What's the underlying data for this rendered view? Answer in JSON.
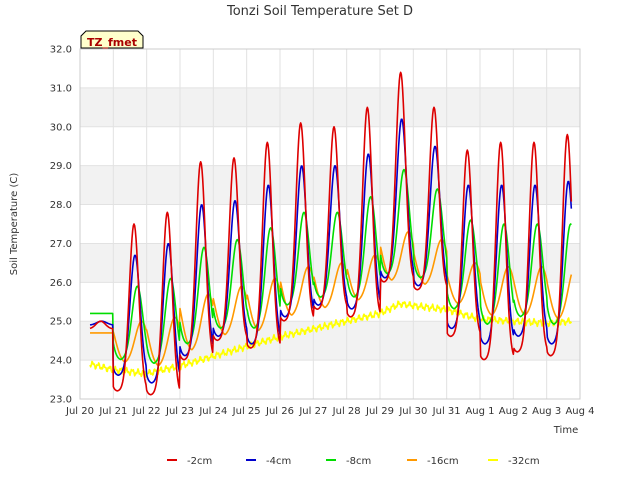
{
  "chart_data": {
    "type": "line",
    "title": "Tonzi Soil Temperature Set D",
    "xlabel": "Time",
    "ylabel": "Soil Temperature (C)",
    "annotation": "TZ_fmet",
    "ylim": [
      23.0,
      32.0
    ],
    "xlim": [
      0,
      15
    ],
    "y_ticks": [
      23.0,
      24.0,
      25.0,
      26.0,
      27.0,
      28.0,
      29.0,
      30.0,
      31.0,
      32.0
    ],
    "y_tick_labels": [
      "23.0",
      "24.0",
      "25.0",
      "26.0",
      "27.0",
      "28.0",
      "29.0",
      "30.0",
      "31.0",
      "32.0"
    ],
    "x_ticks": [
      0,
      1,
      2,
      3,
      4,
      5,
      6,
      7,
      8,
      9,
      10,
      11,
      12,
      13,
      14,
      15
    ],
    "x_tick_labels": [
      "Jul 20",
      "Jul 21",
      "Jul 22",
      "Jul 23",
      "Jul 24",
      "Jul 25",
      "Jul 26",
      "Jul 27",
      "Jul 28",
      "Jul 29",
      "Jul 30",
      "Jul 31",
      "Aug 1",
      "Aug 2",
      "Aug 3",
      "Aug 4"
    ],
    "grid": true,
    "band_colors": [
      "#f2f2f2",
      "#ffffff"
    ],
    "legend_position": "bottom",
    "days": [
      0,
      1,
      2,
      3,
      4,
      5,
      6,
      7,
      8,
      9,
      10,
      11,
      12,
      13,
      14
    ],
    "series": [
      {
        "name": "-2cm",
        "color": "#dd0000",
        "phase": 0.62,
        "width": 0.2,
        "x_start": 0.3,
        "x_end": 14.75,
        "daily_max": [
          25.0,
          27.5,
          27.8,
          29.1,
          29.2,
          29.6,
          30.1,
          30.0,
          30.5,
          31.4,
          30.5,
          29.4,
          29.6,
          29.6,
          29.8
        ],
        "daily_min": [
          24.8,
          23.2,
          23.1,
          24.0,
          24.5,
          24.3,
          25.0,
          25.3,
          25.1,
          26.0,
          25.8,
          24.6,
          24.0,
          24.2,
          24.1
        ]
      },
      {
        "name": "-4cm",
        "color": "#0000cc",
        "phase": 0.65,
        "width": 0.21,
        "x_start": 0.3,
        "x_end": 14.75,
        "daily_max": [
          25.0,
          26.7,
          27.0,
          28.0,
          28.1,
          28.5,
          29.0,
          29.0,
          29.3,
          30.2,
          29.5,
          28.5,
          28.5,
          28.5,
          28.6
        ],
        "daily_min": [
          24.9,
          23.6,
          23.4,
          24.1,
          24.6,
          24.4,
          25.1,
          25.4,
          25.3,
          26.1,
          25.9,
          24.8,
          24.4,
          24.6,
          24.4
        ]
      },
      {
        "name": "-8cm",
        "color": "#00dd00",
        "phase": 0.72,
        "width": 0.23,
        "x_start": 0.3,
        "x_end": 14.75,
        "daily_max": [
          25.2,
          25.9,
          26.1,
          26.9,
          27.1,
          27.4,
          27.8,
          27.8,
          28.2,
          28.9,
          28.4,
          27.6,
          27.5,
          27.5,
          27.5
        ],
        "daily_min": [
          25.2,
          24.0,
          23.9,
          24.4,
          24.8,
          24.8,
          25.4,
          25.6,
          25.6,
          26.2,
          26.1,
          25.3,
          24.9,
          25.1,
          24.9
        ]
      },
      {
        "name": "-16cm",
        "color": "#ff9900",
        "phase": 0.85,
        "width": 0.28,
        "x_start": 0.3,
        "x_end": 14.75,
        "daily_max": [
          24.7,
          25.0,
          25.1,
          25.7,
          25.9,
          26.1,
          26.4,
          26.5,
          26.7,
          27.3,
          27.1,
          26.5,
          26.4,
          26.4,
          26.4
        ],
        "daily_min": [
          24.7,
          23.9,
          23.8,
          24.2,
          24.6,
          24.7,
          25.1,
          25.3,
          25.5,
          26.0,
          25.9,
          25.4,
          25.1,
          25.1,
          25.0
        ]
      },
      {
        "name": "-32cm",
        "color": "#ffff00",
        "x_start": 0.3,
        "x_end": 14.75,
        "trend": [
          [
            0.3,
            23.9
          ],
          [
            1.0,
            23.75
          ],
          [
            2.0,
            23.65
          ],
          [
            3.0,
            23.85
          ],
          [
            4.0,
            24.1
          ],
          [
            5.0,
            24.35
          ],
          [
            6.0,
            24.6
          ],
          [
            7.0,
            24.8
          ],
          [
            8.0,
            25.0
          ],
          [
            9.0,
            25.2
          ],
          [
            9.6,
            25.45
          ],
          [
            10.0,
            25.4
          ],
          [
            11.0,
            25.3
          ],
          [
            12.0,
            25.05
          ],
          [
            13.0,
            25.0
          ],
          [
            14.0,
            24.95
          ],
          [
            14.75,
            25.0
          ]
        ]
      }
    ]
  }
}
